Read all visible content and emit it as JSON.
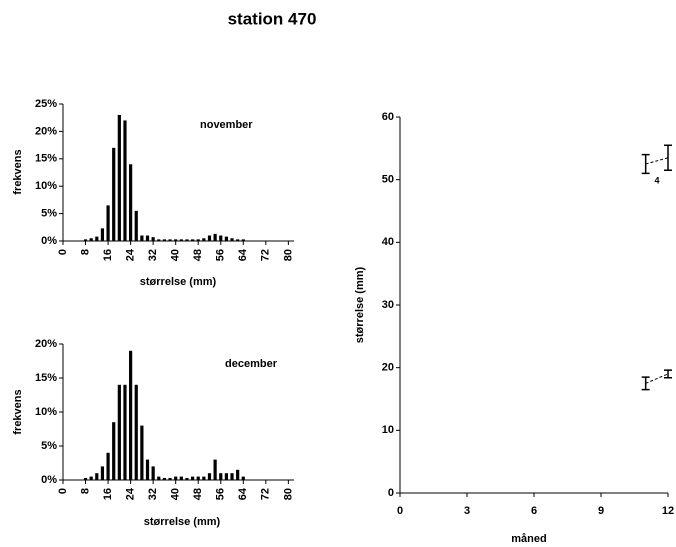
{
  "title": "station 470",
  "chart_data": [
    {
      "type": "bar",
      "annotation": "november",
      "xlabel": "størrelse (mm)",
      "ylabel": "frekvens",
      "x": [
        8,
        10,
        12,
        14,
        16,
        18,
        20,
        22,
        24,
        26,
        28,
        30,
        32,
        34,
        36,
        38,
        40,
        42,
        44,
        46,
        48,
        50,
        52,
        54,
        56,
        58,
        60,
        62,
        64
      ],
      "values": [
        0.3,
        0.5,
        0.8,
        2.3,
        6.5,
        17,
        23,
        22,
        14,
        5.5,
        1,
        1,
        0.7,
        0.3,
        0.3,
        0.3,
        0.3,
        0.3,
        0.3,
        0.3,
        0.3,
        0.5,
        1,
        1.3,
        1,
        0.8,
        0.5,
        0.3,
        0.3
      ],
      "color": "#000000",
      "xlim": [
        0,
        82
      ],
      "xticks": [
        0,
        8,
        16,
        24,
        32,
        40,
        48,
        56,
        64,
        72,
        80
      ],
      "ylim": [
        0,
        25
      ],
      "yticks": [
        {
          "value": 0,
          "label": "0%"
        },
        {
          "value": 5,
          "label": "5%"
        },
        {
          "value": 10,
          "label": "10%"
        },
        {
          "value": 15,
          "label": "15%"
        },
        {
          "value": 20,
          "label": "20%"
        },
        {
          "value": 25,
          "label": "25%"
        }
      ]
    },
    {
      "type": "bar",
      "annotation": "december",
      "xlabel": "størrelse (mm)",
      "ylabel": "frekvens",
      "x": [
        8,
        10,
        12,
        14,
        16,
        18,
        20,
        22,
        24,
        26,
        28,
        30,
        32,
        34,
        36,
        38,
        40,
        42,
        44,
        46,
        48,
        50,
        52,
        54,
        56,
        58,
        60,
        62,
        64
      ],
      "values": [
        0.3,
        0.5,
        1,
        2,
        4,
        8.5,
        14,
        14,
        19,
        14,
        8,
        3,
        2,
        0.5,
        0.3,
        0.3,
        0.5,
        0.5,
        0.3,
        0.5,
        0.5,
        0.5,
        1,
        3,
        1,
        1,
        1,
        1.5,
        0.5
      ],
      "color": "#000000",
      "xlim": [
        0,
        82
      ],
      "xticks": [
        0,
        8,
        16,
        24,
        32,
        40,
        48,
        56,
        64,
        72,
        80
      ],
      "ylim": [
        0,
        20
      ],
      "yticks": [
        {
          "value": 0,
          "label": "0%"
        },
        {
          "value": 5,
          "label": "5%"
        },
        {
          "value": 10,
          "label": "10%"
        },
        {
          "value": 15,
          "label": "15%"
        },
        {
          "value": 20,
          "label": "20%"
        }
      ]
    },
    {
      "type": "errorbar",
      "xlabel": "måned",
      "ylabel": "størrelse (mm)",
      "annotation": "4",
      "series": [
        {
          "color": "#000000",
          "x": [
            11,
            12
          ],
          "values": [
            52.5,
            53.5
          ],
          "errors": [
            1.5,
            2
          ]
        },
        {
          "color": "#000000",
          "x": [
            11,
            12
          ],
          "values": [
            17.5,
            19
          ],
          "errors": [
            1,
            0.6
          ]
        }
      ],
      "xlim": [
        0,
        12
      ],
      "xticks": [
        0,
        3,
        6,
        9,
        12
      ],
      "ylim": [
        0,
        60
      ],
      "yticks": [
        0,
        10,
        20,
        30,
        40,
        50,
        60
      ]
    }
  ]
}
